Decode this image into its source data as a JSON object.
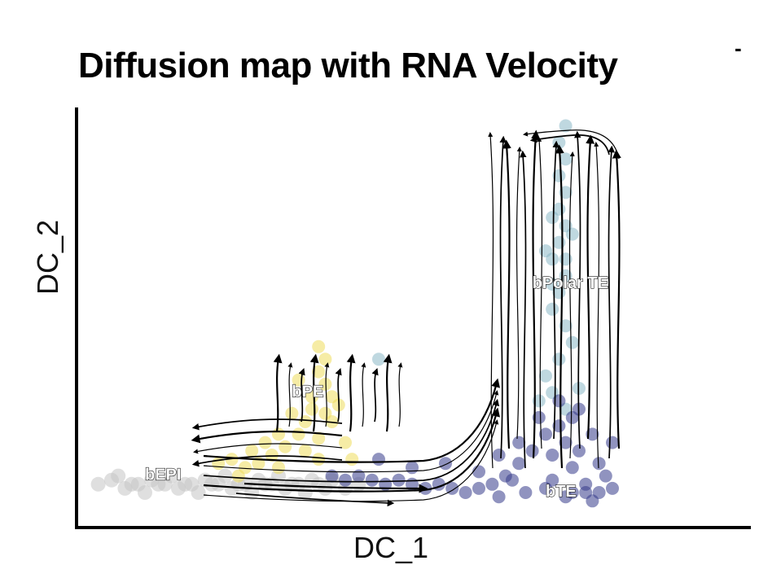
{
  "chart_data": {
    "type": "scatter",
    "title": "Diffusion map with RNA Velocity",
    "title_fragment": "-",
    "xlabel": "DC_1",
    "ylabel": "DC_2",
    "overlay": "velocity-streamlines",
    "grid": false,
    "legend": "none",
    "axis_ticks": false,
    "xlim": [
      0,
      100
    ],
    "ylim": [
      0,
      100
    ],
    "series": [
      {
        "name": "bEPI",
        "color": "#c4c4c4",
        "points": [
          [
            3,
            10
          ],
          [
            5,
            11
          ],
          [
            7,
            9
          ],
          [
            9,
            10
          ],
          [
            11,
            11
          ],
          [
            13,
            10
          ],
          [
            15,
            9
          ],
          [
            17,
            10
          ],
          [
            19,
            11
          ],
          [
            21,
            10
          ],
          [
            23,
            9
          ],
          [
            25,
            10
          ],
          [
            27,
            11
          ],
          [
            29,
            10
          ],
          [
            31,
            9
          ],
          [
            33,
            10
          ],
          [
            35,
            11
          ],
          [
            37,
            9
          ],
          [
            6,
            12
          ],
          [
            10,
            8
          ],
          [
            14,
            12
          ],
          [
            18,
            8
          ],
          [
            22,
            12
          ],
          [
            26,
            8
          ],
          [
            30,
            12
          ],
          [
            34,
            8
          ],
          [
            38,
            11
          ],
          [
            40,
            9
          ],
          [
            42,
            10
          ],
          [
            8,
            10
          ],
          [
            12,
            10
          ],
          [
            16,
            10
          ],
          [
            20,
            10
          ],
          [
            24,
            10
          ],
          [
            28,
            10
          ],
          [
            32,
            10
          ],
          [
            36,
            10
          ]
        ]
      },
      {
        "name": "bPE",
        "color": "#eedc5b",
        "points": [
          [
            36,
            37
          ],
          [
            37,
            40
          ],
          [
            36,
            43
          ],
          [
            37,
            34
          ],
          [
            38,
            31
          ],
          [
            35,
            28
          ],
          [
            34,
            25
          ],
          [
            33,
            22
          ],
          [
            31,
            19
          ],
          [
            29,
            17
          ],
          [
            27,
            15
          ],
          [
            25,
            14
          ],
          [
            23,
            16
          ],
          [
            21,
            15
          ],
          [
            30,
            22
          ],
          [
            32,
            27
          ],
          [
            28,
            20
          ],
          [
            34,
            18
          ],
          [
            36,
            21
          ],
          [
            38,
            25
          ],
          [
            39,
            29
          ],
          [
            35,
            31
          ],
          [
            33,
            35
          ],
          [
            37,
            27
          ],
          [
            40,
            20
          ],
          [
            41,
            16
          ],
          [
            26,
            18
          ],
          [
            24,
            12
          ],
          [
            30,
            14
          ],
          [
            36,
            16
          ]
        ]
      },
      {
        "name": "bPolar TE",
        "color": "#8bb8c6",
        "points": [
          [
            73,
            96
          ],
          [
            72,
            92
          ],
          [
            73,
            88
          ],
          [
            72,
            84
          ],
          [
            73,
            80
          ],
          [
            72,
            76
          ],
          [
            73,
            72
          ],
          [
            72,
            68
          ],
          [
            71,
            64
          ],
          [
            73,
            60
          ],
          [
            72,
            56
          ],
          [
            71,
            52
          ],
          [
            73,
            48
          ],
          [
            74,
            44
          ],
          [
            72,
            40
          ],
          [
            70,
            36
          ],
          [
            71,
            32
          ],
          [
            69,
            30
          ],
          [
            73,
            28
          ],
          [
            75,
            33
          ],
          [
            45,
            40
          ],
          [
            71,
            58
          ],
          [
            70,
            66
          ],
          [
            73,
            64
          ],
          [
            71,
            74
          ],
          [
            74,
            70
          ]
        ]
      },
      {
        "name": "bTE",
        "color": "#343a8a",
        "points": [
          [
            72,
            24
          ],
          [
            73,
            20
          ],
          [
            71,
            17
          ],
          [
            74,
            14
          ],
          [
            76,
            10
          ],
          [
            78,
            8
          ],
          [
            80,
            9
          ],
          [
            79,
            12
          ],
          [
            75,
            18
          ],
          [
            77,
            22
          ],
          [
            74,
            26
          ],
          [
            70,
            22
          ],
          [
            68,
            18
          ],
          [
            66,
            15
          ],
          [
            64,
            12
          ],
          [
            62,
            10
          ],
          [
            60,
            9
          ],
          [
            58,
            8
          ],
          [
            56,
            9
          ],
          [
            54,
            10
          ],
          [
            52,
            9
          ],
          [
            50,
            10
          ],
          [
            48,
            11
          ],
          [
            46,
            10
          ],
          [
            44,
            11
          ],
          [
            42,
            12
          ],
          [
            40,
            11
          ],
          [
            38,
            12
          ],
          [
            45,
            16
          ],
          [
            50,
            14
          ],
          [
            55,
            15
          ],
          [
            60,
            13
          ],
          [
            65,
            11
          ],
          [
            70,
            9
          ],
          [
            73,
            7
          ],
          [
            76,
            8
          ],
          [
            78,
            15
          ],
          [
            80,
            20
          ],
          [
            72,
            30
          ],
          [
            75,
            28
          ],
          [
            69,
            26
          ],
          [
            77,
            6
          ],
          [
            74,
            8
          ],
          [
            71,
            11
          ],
          [
            67,
            8
          ],
          [
            63,
            7
          ],
          [
            66,
            20
          ],
          [
            63,
            17
          ]
        ]
      }
    ],
    "annotations": [
      {
        "text": "bEPI",
        "x": 10,
        "y": 11
      },
      {
        "text": "bPE",
        "x": 32,
        "y": 31
      },
      {
        "text": "bPolar TE",
        "x": 68,
        "y": 57
      },
      {
        "text": "bTE",
        "x": 70,
        "y": 7
      }
    ]
  }
}
